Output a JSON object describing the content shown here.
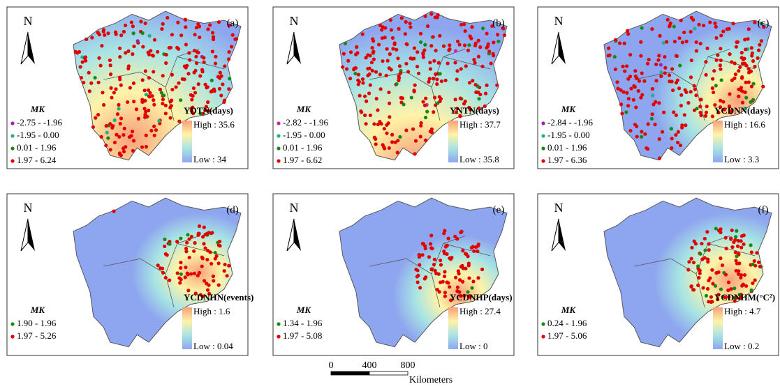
{
  "panels": [
    {
      "label": "(a)",
      "north": "N",
      "legend_title": "MK",
      "classes": [
        {
          "label": "-2.75 - -1.96",
          "color": "#a020b0"
        },
        {
          "label": "-1.95 - 0.00",
          "color": "#20b08a"
        },
        {
          "label": "0.01 - 1.96",
          "color": "#168a16"
        },
        {
          "label": "1.97 - 6.24",
          "color": "#e00000"
        }
      ],
      "field_title": "YDTN(days)",
      "high": "High : 35.6",
      "low": "Low : 34"
    },
    {
      "label": "(b)",
      "north": "N",
      "legend_title": "MK",
      "classes": [
        {
          "label": "-2.82 - -1.96",
          "color": "#d020b0"
        },
        {
          "label": "-1.95 - 0.00",
          "color": "#20b08a"
        },
        {
          "label": "0.01 - 1.96",
          "color": "#168a16"
        },
        {
          "label": "1.97 - 6.62",
          "color": "#e00000"
        }
      ],
      "field_title": "YNTN(days)",
      "high": "High : 37.7",
      "low": "Low : 35.8"
    },
    {
      "label": "(c)",
      "north": "N",
      "legend_title": "MK",
      "classes": [
        {
          "label": "-2.84 - -1.96",
          "color": "#a020b0"
        },
        {
          "label": "-1.95 - 0.00",
          "color": "#20b08a"
        },
        {
          "label": "0.01 - 1.96",
          "color": "#168a16"
        },
        {
          "label": "1.97 - 6.36",
          "color": "#e00000"
        }
      ],
      "field_title": "YCDNN(days)",
      "high": "High : 16.6",
      "low": "Low : 3.3"
    },
    {
      "label": "(d)",
      "north": "N",
      "legend_title": "MK",
      "classes": [
        {
          "label": "1.90 - 1.96",
          "color": "#168a16"
        },
        {
          "label": "1.97 - 5.26",
          "color": "#e00000"
        }
      ],
      "field_title": "YCDNHN(events)",
      "high": "High : 1.6",
      "low": "Low : 0.04"
    },
    {
      "label": "(e)",
      "north": "N",
      "legend_title": "MK",
      "classes": [
        {
          "label": "1.34 - 1.96",
          "color": "#168a16"
        },
        {
          "label": "1.97 - 5.08",
          "color": "#e00000"
        }
      ],
      "field_title": "YCDNHP(days)",
      "high": "High : 27.4",
      "low": "Low : 0"
    },
    {
      "label": "(f)",
      "north": "N",
      "legend_title": "MK",
      "classes": [
        {
          "label": "0.24 - 1.96",
          "color": "#168a16"
        },
        {
          "label": "1.97 - 5.06",
          "color": "#e00000"
        }
      ],
      "field_title": "YCDNHM(°C²)",
      "high": "High : 4.7",
      "low": "Low : 0.2"
    }
  ],
  "color_ramp": [
    "#f7a07a",
    "#fff3a8",
    "#a8e4e4",
    "#8ea6ef"
  ],
  "scale_bar": {
    "ticks": [
      0,
      400,
      800
    ],
    "unit": "Kilometers"
  }
}
